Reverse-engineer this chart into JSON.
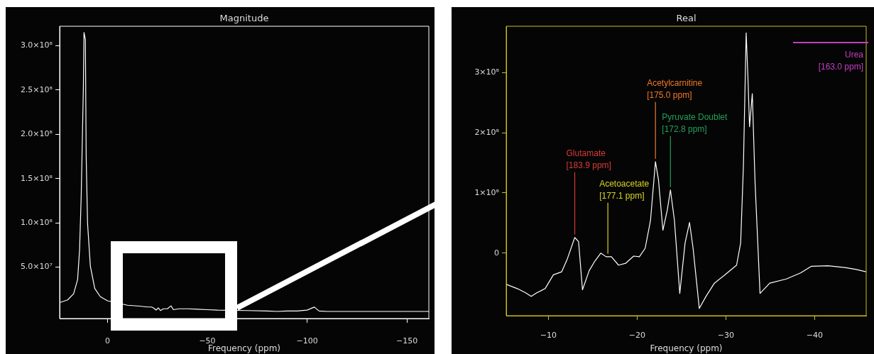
{
  "chart_data": [
    {
      "type": "line",
      "title": "Magnitude",
      "xlabel": "Frequency (ppm)",
      "color": "#ffffff",
      "xlim": [
        24,
        -161
      ],
      "xticks": [
        0,
        {
          "value": -50,
          "label": "−50"
        },
        {
          "value": -100,
          "label": "−100"
        },
        {
          "value": -150,
          "label": "−150"
        }
      ],
      "ylim": [
        -8000000.0,
        322000000.0
      ],
      "yticks": [
        {
          "value": 50000000.0,
          "label": "5.0×10⁷"
        },
        {
          "value": 100000000.0,
          "label": "1.0×10⁸"
        },
        {
          "value": 150000000.0,
          "label": "1.5×10⁸"
        },
        {
          "value": 200000000.0,
          "label": "2.0×10⁸"
        },
        {
          "value": 250000000.0,
          "label": "2.5×10⁸"
        },
        {
          "value": 300000000.0,
          "label": "3.0×10⁸"
        }
      ],
      "x": [
        24,
        20,
        17,
        15,
        14,
        13.2,
        12.1,
        11.8,
        11.1,
        10.7,
        10,
        8.6,
        6.4,
        3.6,
        0,
        -10,
        -16,
        -20,
        -22,
        -23,
        -24.3,
        -25.5,
        -26.5,
        -28,
        -30,
        -31.8,
        -33,
        -36,
        -40,
        -45,
        -50,
        -55,
        -70,
        -80,
        -85,
        -90,
        -95,
        -100,
        -103.6,
        -106,
        -110,
        -120,
        -140,
        -161
      ],
      "values": [
        10000000.0,
        13000000.0,
        20000000.0,
        36000000.0,
        70000000.0,
        130000000.0,
        254000000.0,
        315000000.0,
        307000000.0,
        175000000.0,
        99000000.0,
        51000000.0,
        26000000.0,
        16600000.0,
        12000000.0,
        7000000.0,
        6000000.0,
        5000000.0,
        5000000.0,
        4000000.0,
        1600000.0,
        4000000.0,
        1000000.0,
        3000000.0,
        3000000.0,
        6300000.0,
        2000000.0,
        3000000.0,
        3000000.0,
        2500000.0,
        2000000.0,
        1500000.0,
        1000000.0,
        500000.0,
        0,
        500000.0,
        500000.0,
        1500000.0,
        4900000.0,
        500000.0,
        0,
        0,
        0,
        0
      ]
    },
    {
      "type": "line",
      "title": "Real",
      "xlabel": "Frequency (ppm)",
      "color": "#ffffff",
      "xlim": [
        -5.25,
        -45.8
      ],
      "xticks": [
        {
          "value": -10,
          "label": "−10"
        },
        {
          "value": -20,
          "label": "−20"
        },
        {
          "value": -30,
          "label": "−30"
        },
        {
          "value": -40,
          "label": "−40"
        }
      ],
      "ylim": [
        -104000000.0,
        377000000.0
      ],
      "yticks": [
        0,
        {
          "value": 100000000.0,
          "label": "1×10⁸"
        },
        {
          "value": 200000000.0,
          "label": "2×10⁸"
        },
        {
          "value": 300000000.0,
          "label": "3×10⁸"
        }
      ],
      "x": [
        -5.25,
        -6.5,
        -7.44,
        -8.06,
        -8.69,
        -9.63,
        -10.56,
        -11.5,
        -12.1,
        -12.97,
        -13.4,
        -13.84,
        -14.6,
        -15.25,
        -15.9,
        -16.5,
        -17.1,
        -17.9,
        -18.7,
        -19.6,
        -20.25,
        -20.9,
        -21.5,
        -22.06,
        -22.4,
        -22.9,
        -23.4,
        -23.75,
        -24.2,
        -24.8,
        -25.4,
        -25.9,
        -26.3,
        -27.0,
        -27.75,
        -28.7,
        -29.9,
        -31.2,
        -31.66,
        -31.97,
        -32.28,
        -32.5,
        -32.66,
        -32.97,
        -33.28,
        -33.84,
        -34.94,
        -36.8,
        -38.4,
        -39.6,
        -41.5,
        -43.4,
        -44.6,
        -45.8
      ],
      "values": [
        -52000000.0,
        -59000000.0,
        -66000000.0,
        -72000000.0,
        -66000000.0,
        -59000000.0,
        -36000000.0,
        -31000000.0,
        -11000000.0,
        26000000.0,
        19000000.0,
        -61000000.0,
        -29000000.0,
        -13000000.0,
        0,
        -6000000.0,
        -6000000.0,
        -20000000.0,
        -17000000.0,
        -5000000.0,
        -6000000.0,
        8000000.0,
        54000000.0,
        152000000.0,
        122000000.0,
        38000000.0,
        72000000.0,
        105000000.0,
        54000000.0,
        -67000000.0,
        17000000.0,
        51000000.0,
        8000000.0,
        -92000000.0,
        -72000000.0,
        -50000000.0,
        -36000000.0,
        -20000000.0,
        17000000.0,
        145000000.0,
        366000000.0,
        283000000.0,
        210000000.0,
        265000000.0,
        118000000.0,
        -67000000.0,
        -50000000.0,
        -43000000.0,
        -33000000.0,
        -22000000.0,
        -21000000.0,
        -24000000.0,
        -27000000.0,
        -31000000.0
      ],
      "annotations": [
        {
          "text": "Glutamate\n[183.9 ppm]",
          "x": -12.97,
          "y": 26000000.0
        },
        {
          "text": "Acetoacetate\n[177.1 ppm]",
          "x": -16.7,
          "y": -6000000.0
        },
        {
          "text": "Acetylcarnitine\n[175.0 ppm]",
          "x": -22.06,
          "y": 152000000.0
        },
        {
          "text": "Pyruvate Doublet\n[172.8 ppm]",
          "x": -23.75,
          "y": 105000000.0
        },
        "Urea\n[163.0 ppm]"
      ]
    }
  ]
}
